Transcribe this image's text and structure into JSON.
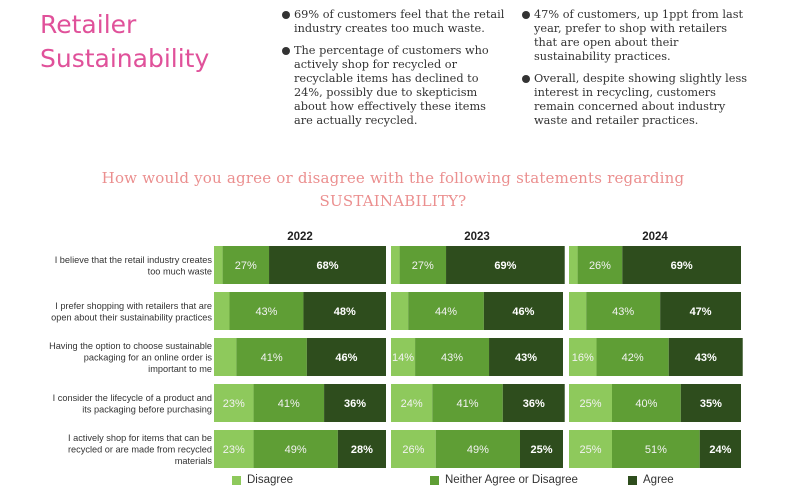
{
  "header": {
    "title": "Retailer Sustainability",
    "bullets_left": [
      "69% of customers feel that the retail industry creates too much waste.",
      "The percentage of customers who actively shop for recycled or recyclable items has declined to 24%, possibly due to skepticism about how effectively these items are actually recycled."
    ],
    "bullets_right": [
      "47% of customers, up 1ppt from last year, prefer to shop with retailers that are open about their sustainability practices.",
      "Overall, despite showing slightly less interest in recycling, customers remain concerned about industry waste and retailer practices."
    ]
  },
  "chart_data": {
    "type": "bar",
    "orientation": "horizontal",
    "stacked": true,
    "normalized_percent": true,
    "title": "How would you agree or disagree with the following statements regarding SUSTAINABILITY?",
    "panels": [
      "2022",
      "2023",
      "2024"
    ],
    "categories": [
      "I believe that the retail industry creates too much waste",
      "I prefer shopping with retailers that are open about their sustainability practices",
      "Having the option to choose sustainable packaging for an online order is important to me",
      "I consider the lifecycle of a product and its packaging before purchasing",
      "I actively shop for items that can be recycled or are made from recycled materials"
    ],
    "category_lines": [
      [
        "I believe that the retail industry creates",
        "too much waste"
      ],
      [
        "I prefer shopping with retailers that are",
        "open about their sustainability practices"
      ],
      [
        "Having the option to choose sustainable",
        "packaging for an online order is",
        "important to me"
      ],
      [
        "I consider the lifecycle of a product and",
        "its packaging before purchasing"
      ],
      [
        "I actively shop for items that can be",
        "recycled or are made from recycled",
        "materials"
      ]
    ],
    "series": [
      {
        "name": "Disagree",
        "color": "#8ec95c",
        "values": {
          "2022": [
            5,
            9,
            13,
            23,
            23
          ],
          "2023": [
            5,
            10,
            14,
            24,
            26
          ],
          "2024": [
            5,
            10,
            16,
            25,
            25
          ]
        },
        "labels": {
          "2022": [
            "",
            "",
            "",
            "23%",
            "23%"
          ],
          "2023": [
            "",
            "",
            "14%",
            "24%",
            "26%"
          ],
          "2024": [
            "",
            "",
            "16%",
            "25%",
            "25%"
          ]
        }
      },
      {
        "name": "Neither Agree or Disagree",
        "color": "#5f9e35",
        "values": {
          "2022": [
            27,
            43,
            41,
            41,
            49
          ],
          "2023": [
            27,
            44,
            43,
            41,
            49
          ],
          "2024": [
            26,
            43,
            42,
            40,
            51
          ]
        },
        "labels": {
          "2022": [
            "27%",
            "43%",
            "41%",
            "41%",
            "49%"
          ],
          "2023": [
            "27%",
            "44%",
            "43%",
            "41%",
            "49%"
          ],
          "2024": [
            "26%",
            "43%",
            "42%",
            "40%",
            "51%"
          ]
        }
      },
      {
        "name": "Agree",
        "color": "#2e4d1d",
        "values": {
          "2022": [
            68,
            48,
            46,
            36,
            28
          ],
          "2023": [
            69,
            46,
            43,
            36,
            25
          ],
          "2024": [
            69,
            47,
            43,
            35,
            24
          ]
        },
        "labels": {
          "2022": [
            "68%",
            "48%",
            "46%",
            "36%",
            "28%"
          ],
          "2023": [
            "69%",
            "46%",
            "43%",
            "36%",
            "25%"
          ],
          "2024": [
            "69%",
            "47%",
            "43%",
            "35%",
            "24%"
          ]
        }
      }
    ],
    "legend_position": "bottom",
    "grid": false
  }
}
